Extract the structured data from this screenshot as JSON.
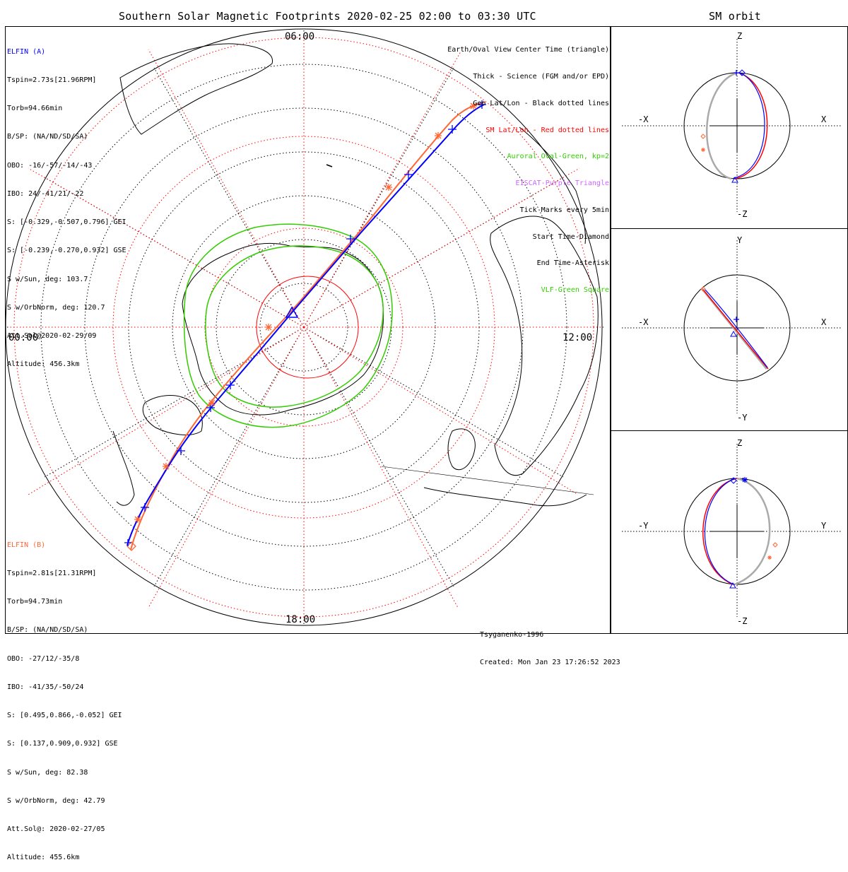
{
  "header": {
    "title": "Southern Solar Magnetic Footprints 2020-02-25 02:00 to 03:30 UTC",
    "orbit_title": "SM orbit"
  },
  "map": {
    "mlt_labels": {
      "top": "06:00",
      "left": "00:00",
      "right": "12:00",
      "bottom": "18:00"
    }
  },
  "elfin_a": {
    "name": "ELFIN (A)",
    "color": "#0000ff",
    "lines": [
      "Tspin=2.73s[21.96RPM]",
      "Torb=94.66min",
      "B/SP: (NA/ND/SD/SA)",
      "OBO: -16/-57/-14/-43",
      "IBO: 24/-41/21/-22",
      "S: [-0.329,-0.507,0.796] GEI",
      "S: [-0.239,-0.270,0.932] GSE",
      "S w/Sun, deg: 103.7",
      "S w/OrbNorm, deg: 120.7",
      "Att.Sol@2020-02-29/09",
      "Altitude: 456.3km"
    ]
  },
  "elfin_b": {
    "name": "ELFIN (B)",
    "color": "#ff6633",
    "lines": [
      "Tspin=2.81s[21.31RPM]",
      "Torb=94.73min",
      "B/SP: (NA/ND/SD/SA)",
      "OBO: -27/12/-35/8",
      "IBO: -41/35/-50/24",
      "S: [0.495,0.866,-0.052] GEI",
      "S: [0.137,0.909,0.932] GSE",
      "S w/Sun, deg: 82.38",
      "S w/OrbNorm, deg: 42.79",
      "Att.Sol@: 2020-02-27/05",
      "Altitude: 455.6km"
    ]
  },
  "legend": [
    {
      "text": "Earth/Oval View Center Time (triangle)",
      "color": "#000000"
    },
    {
      "text": "Thick - Science (FGM and/or EPD)",
      "color": "#000000"
    },
    {
      "text": "Geo Lat/Lon - Black dotted lines",
      "color": "#000000"
    },
    {
      "text": "SM Lat/Lon - Red dotted lines",
      "color": "#ff0000"
    },
    {
      "text": "Auroral Oval-Green, kp=2",
      "color": "#33cc00"
    },
    {
      "text": "EISCAT-Purple Triangle",
      "color": "#cc66ff"
    },
    {
      "text": "Tick Marks every 5min",
      "color": "#000000"
    },
    {
      "text": "Start Time-Diamond",
      "color": "#000000"
    },
    {
      "text": "End Time-Asterisk",
      "color": "#000000"
    },
    {
      "text": "VLF-Green Square",
      "color": "#33cc00"
    }
  ],
  "credit": {
    "model": "Tsyganenko-1996",
    "created": "Created: Mon Jan 23 17:26:52 2023"
  },
  "orbit_panels": [
    {
      "top": "Z",
      "bottom": "-Z",
      "left": "-X",
      "right": "X"
    },
    {
      "top": "Y",
      "bottom": "-Y",
      "left": "-X",
      "right": "X"
    },
    {
      "top": "Z",
      "bottom": "-Z",
      "left": "-Y",
      "right": "Y"
    }
  ],
  "colors": {
    "elfin_a": "#0000ff",
    "elfin_b": "#ff6633",
    "sm_grid": "#ff0000",
    "oval": "#33cc00",
    "geo_grid": "#000000",
    "orbit_gray": "#aaaaaa"
  }
}
